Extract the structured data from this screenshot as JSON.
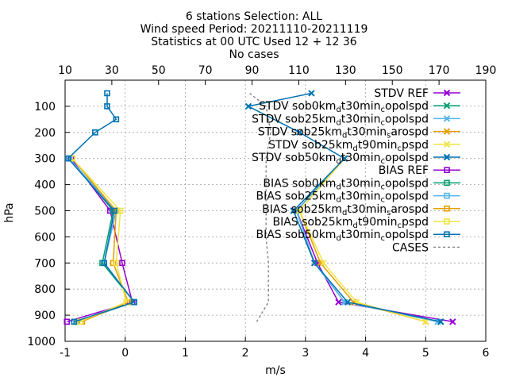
{
  "chart_data": {
    "type": "line",
    "title_lines": [
      "6 stations Selection: ALL",
      "Wind speed  Period: 20211110-20211119",
      "Statistics at 00 UTC  Used 12 + 12 36",
      "No cases"
    ],
    "xlabel": "m/s",
    "ylabel": "hPa",
    "xlim": [
      -1,
      6
    ],
    "ylim": [
      1000,
      0
    ],
    "x2lim": [
      10,
      190
    ],
    "xticks": [
      -1,
      0,
      1,
      2,
      3,
      4,
      5,
      6
    ],
    "x2ticks": [
      10,
      30,
      50,
      70,
      90,
      110,
      130,
      150,
      170,
      190
    ],
    "yticks": [
      100,
      200,
      300,
      400,
      500,
      600,
      700,
      800,
      900,
      1000
    ],
    "grid": true,
    "legend_position": "top-right",
    "series": [
      {
        "name": "STDV REF",
        "color": "#9400d3",
        "marker": "x",
        "levels": [
          925,
          850,
          700,
          500,
          300
        ],
        "values": [
          5.45,
          3.55,
          3.2,
          2.85,
          3.65
        ]
      },
      {
        "name": "STDV sob0km_d t30min_c opolspd",
        "color": "#009e73",
        "marker": "x",
        "levels": [
          925,
          850,
          700,
          500,
          300
        ],
        "values": [
          5.25,
          3.65,
          3.15,
          2.85,
          3.65
        ]
      },
      {
        "name": "STDV sob25km_d t30min_c opolspd",
        "color": "#56b4e9",
        "marker": "x",
        "levels": [
          925,
          850,
          700,
          500,
          300
        ],
        "values": [
          5.2,
          3.65,
          3.15,
          2.85,
          3.65
        ]
      },
      {
        "name": "STDV sob25km_d t30min_s arospd",
        "color": "#e69f00",
        "marker": "x",
        "levels": [
          925,
          850,
          700,
          500,
          300
        ],
        "values": [
          5.0,
          3.8,
          3.25,
          2.9,
          3.65
        ]
      },
      {
        "name": "STDV sob25km_d t90min_c pspd",
        "color": "#f0e442",
        "marker": "x",
        "levels": [
          925,
          850,
          700,
          500,
          300
        ],
        "values": [
          5.0,
          3.85,
          3.3,
          2.9,
          3.65
        ]
      },
      {
        "name": "STDV sob50km_d t30min_c opolspd",
        "color": "#0072b2",
        "marker": "x",
        "levels": [
          925,
          850,
          700,
          500,
          300,
          200,
          100,
          50
        ],
        "values": [
          5.25,
          3.7,
          3.15,
          2.8,
          3.65,
          2.9,
          2.05,
          3.1
        ]
      },
      {
        "name": "BIAS REF",
        "color": "#9400d3",
        "marker": "square",
        "levels": [
          925,
          850,
          700,
          500,
          300
        ],
        "values": [
          -0.97,
          0.12,
          -0.05,
          -0.25,
          -0.9
        ]
      },
      {
        "name": "BIAS sob0km_d t30min_c opolspd",
        "color": "#009e73",
        "marker": "square",
        "levels": [
          925,
          850,
          700,
          500,
          300
        ],
        "values": [
          -0.8,
          0.15,
          -0.38,
          -0.2,
          -0.93
        ]
      },
      {
        "name": "BIAS sob25km_d t30min_c opolspd",
        "color": "#56b4e9",
        "marker": "square",
        "levels": [
          925,
          850,
          700,
          500,
          300
        ],
        "values": [
          -0.82,
          0.15,
          -0.35,
          -0.15,
          -0.93
        ]
      },
      {
        "name": "BIAS sob25km_d t30min_s arospd",
        "color": "#e69f00",
        "marker": "square",
        "levels": [
          925,
          850,
          700,
          500,
          300
        ],
        "values": [
          -0.72,
          0.05,
          -0.2,
          -0.15,
          -0.88
        ]
      },
      {
        "name": "BIAS sob25km_d t90min_c pspd",
        "color": "#f0e442",
        "marker": "square",
        "levels": [
          925,
          850,
          700,
          500,
          300
        ],
        "values": [
          -0.75,
          0.02,
          -0.15,
          -0.08,
          -0.88
        ]
      },
      {
        "name": "BIAS sob50km_d t30min_c opolspd",
        "color": "#0072b2",
        "marker": "square",
        "levels": [
          925,
          850,
          700,
          500,
          300,
          200,
          150,
          100,
          50
        ],
        "values": [
          -0.85,
          0.15,
          -0.35,
          -0.18,
          -0.95,
          -0.5,
          -0.15,
          -0.3,
          -0.3
        ]
      },
      {
        "name": "CASES",
        "color": "#808080",
        "marker": "none",
        "dashed": true,
        "axis": "x2",
        "levels": [
          925,
          850,
          700,
          600,
          500,
          300,
          200,
          100,
          50
        ],
        "values": [
          92,
          97,
          97,
          96,
          96,
          96,
          98,
          96,
          89
        ]
      }
    ],
    "legend": [
      {
        "parts": [
          {
            "t": "STDV REF"
          }
        ]
      },
      {
        "parts": [
          {
            "t": "STDV sob0km"
          },
          {
            "t": "d",
            "sub": true
          },
          {
            "t": "t30min"
          },
          {
            "t": "c",
            "sub": true
          },
          {
            "t": "opolspd"
          }
        ]
      },
      {
        "parts": [
          {
            "t": "STDV sob25km"
          },
          {
            "t": "d",
            "sub": true
          },
          {
            "t": "t30min"
          },
          {
            "t": "c",
            "sub": true
          },
          {
            "t": "opolspd"
          }
        ]
      },
      {
        "parts": [
          {
            "t": "STDV sob25km"
          },
          {
            "t": "d",
            "sub": true
          },
          {
            "t": "t30min"
          },
          {
            "t": "s",
            "sub": true
          },
          {
            "t": "arospd"
          }
        ]
      },
      {
        "parts": [
          {
            "t": "STDV sob25km"
          },
          {
            "t": "d",
            "sub": true
          },
          {
            "t": "t90min"
          },
          {
            "t": "c",
            "sub": true
          },
          {
            "t": "pspd"
          }
        ]
      },
      {
        "parts": [
          {
            "t": "STDV sob50km"
          },
          {
            "t": "d",
            "sub": true
          },
          {
            "t": "t30min"
          },
          {
            "t": "c",
            "sub": true
          },
          {
            "t": "opolspd"
          }
        ]
      },
      {
        "parts": [
          {
            "t": "BIAS REF"
          }
        ]
      },
      {
        "parts": [
          {
            "t": "BIAS sob0km"
          },
          {
            "t": "d",
            "sub": true
          },
          {
            "t": "t30min"
          },
          {
            "t": "c",
            "sub": true
          },
          {
            "t": "opolspd"
          }
        ]
      },
      {
        "parts": [
          {
            "t": "BIAS sob25km"
          },
          {
            "t": "d",
            "sub": true
          },
          {
            "t": "t30min"
          },
          {
            "t": "c",
            "sub": true
          },
          {
            "t": "opolspd"
          }
        ]
      },
      {
        "parts": [
          {
            "t": "BIAS sob25km"
          },
          {
            "t": "d",
            "sub": true
          },
          {
            "t": "t30min"
          },
          {
            "t": "s",
            "sub": true
          },
          {
            "t": "arospd"
          }
        ]
      },
      {
        "parts": [
          {
            "t": "BIAS sob25km"
          },
          {
            "t": "d",
            "sub": true
          },
          {
            "t": "t90min"
          },
          {
            "t": "c",
            "sub": true
          },
          {
            "t": "pspd"
          }
        ]
      },
      {
        "parts": [
          {
            "t": "BIAS sob50km"
          },
          {
            "t": "d",
            "sub": true
          },
          {
            "t": "t30min"
          },
          {
            "t": "c",
            "sub": true
          },
          {
            "t": "opolspd"
          }
        ]
      },
      {
        "parts": [
          {
            "t": "CASES"
          }
        ]
      }
    ]
  }
}
